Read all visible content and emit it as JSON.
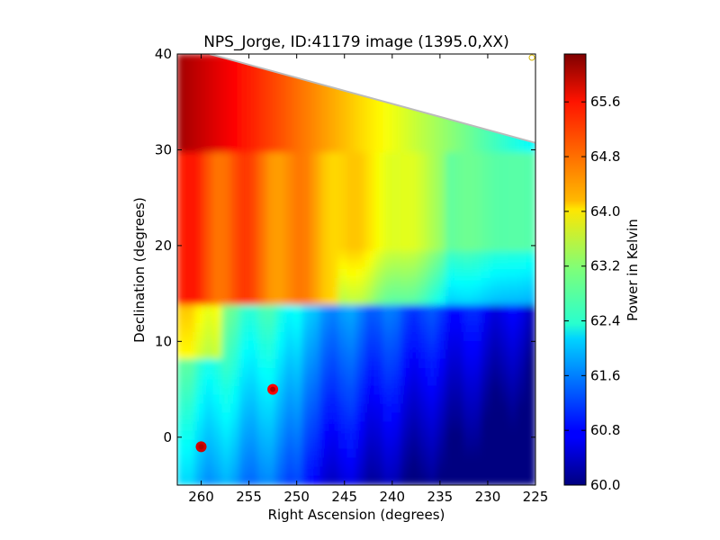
{
  "chart_data": {
    "type": "heatmap",
    "title": "NPS_Jorge, ID:41179 image (1395.0,XX)",
    "xlabel": "Right Ascension (degrees)",
    "ylabel": "Declination (degrees)",
    "xlim": [
      262.5,
      225
    ],
    "ylim": [
      -5,
      40
    ],
    "x_ticks": [
      260,
      255,
      250,
      245,
      240,
      235,
      230,
      225
    ],
    "y_ticks": [
      0,
      10,
      20,
      30,
      40
    ],
    "grid": false,
    "colormap": "jet",
    "colorbar": {
      "label": "Power in Kelvin",
      "range": [
        60.0,
        66.3
      ],
      "ticks": [
        "65.6",
        "64.8",
        "64.0",
        "63.2",
        "62.4",
        "61.6",
        "60.8",
        "60.0"
      ]
    },
    "no_data_region": "upper-right wedge above the line Dec 40 at RA 259.5 to Dec 31 at RA 225",
    "features": [
      {
        "label": "hot corner",
        "ra": 262.5,
        "dec": 38,
        "value": 66.3
      },
      {
        "label": "bright source",
        "ra": 260,
        "dec": -1,
        "value": 65.8
      },
      {
        "label": "bright source",
        "ra": 252.5,
        "dec": 5,
        "value": 65.5
      },
      {
        "label": "cold corner",
        "ra": 226,
        "dec": -3,
        "value": 60.0
      }
    ]
  }
}
